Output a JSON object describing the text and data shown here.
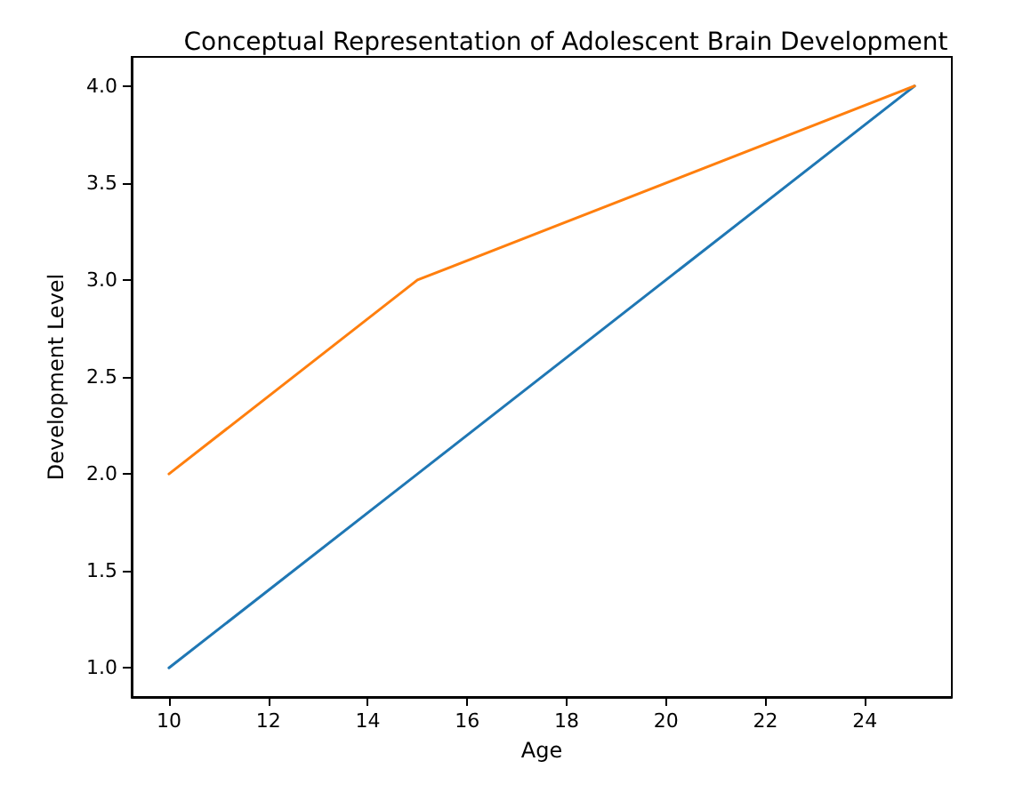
{
  "chart_data": {
    "type": "line",
    "title": "Conceptual Representation of Adolescent Brain Development",
    "xlabel": "Age",
    "ylabel": "Development Level",
    "x": [
      10,
      15,
      25
    ],
    "series": [
      {
        "color": "#1f77b4",
        "values": [
          1,
          2,
          4
        ]
      },
      {
        "color": "#ff7f0e",
        "values": [
          2,
          3,
          4
        ]
      }
    ],
    "xlim": [
      9.25,
      25.75
    ],
    "xticks": [
      10,
      12,
      14,
      16,
      18,
      20,
      22,
      24
    ],
    "ylim": [
      0.85,
      4.15
    ],
    "yticks": [
      {
        "value": 1,
        "label": "1.0"
      },
      {
        "value": 1.5,
        "label": "1.5"
      },
      {
        "value": 2,
        "label": "2.0"
      },
      {
        "value": 2.5,
        "label": "2.5"
      },
      {
        "value": 3,
        "label": "3.0"
      },
      {
        "value": 3.5,
        "label": "3.5"
      },
      {
        "value": 4,
        "label": "4.0"
      }
    ],
    "grid": false,
    "marker": "none",
    "line_style": "solid"
  }
}
